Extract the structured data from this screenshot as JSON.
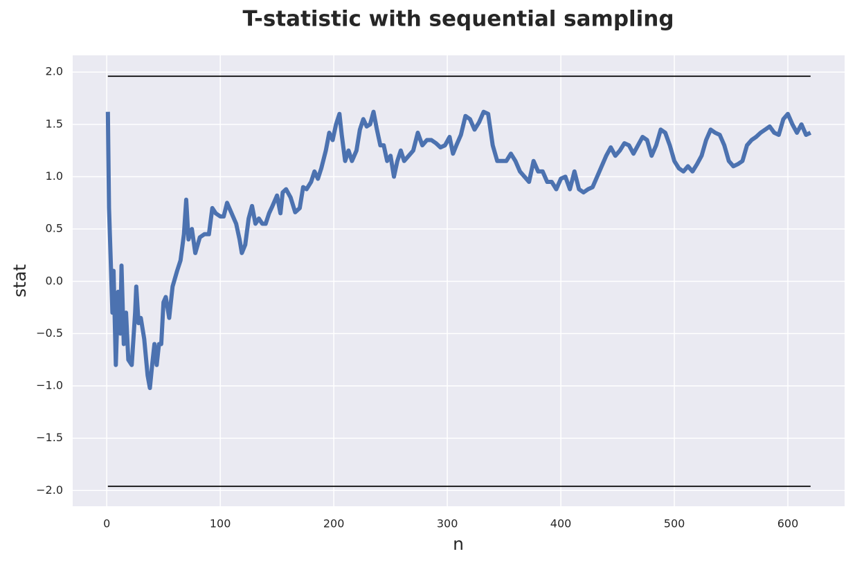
{
  "chart_data": {
    "type": "line",
    "title": "T-statistic with sequential sampling",
    "xlabel": "n",
    "ylabel": "stat",
    "color": "#4c72b0",
    "x": [
      1,
      2,
      5,
      6,
      8,
      10,
      12,
      13,
      15,
      17,
      19,
      22,
      25,
      26,
      28,
      30,
      33,
      36,
      38,
      40,
      42,
      44,
      46,
      48,
      50,
      52,
      55,
      58,
      62,
      65,
      68,
      70,
      72,
      75,
      78,
      82,
      86,
      90,
      93,
      96,
      100,
      103,
      106,
      110,
      114,
      117,
      119,
      122,
      125,
      128,
      131,
      134,
      137,
      140,
      143,
      146,
      150,
      153,
      155,
      158,
      162,
      166,
      170,
      173,
      176,
      180,
      183,
      186,
      189,
      193,
      196,
      199,
      202,
      205,
      207,
      210,
      213,
      216,
      220,
      223,
      226,
      229,
      232,
      235,
      238,
      241,
      244,
      247,
      250,
      253,
      256,
      259,
      262,
      266,
      270,
      274,
      278,
      282,
      286,
      290,
      294,
      298,
      302,
      305,
      308,
      312,
      316,
      320,
      324,
      328,
      332,
      336,
      340,
      344,
      348,
      352,
      356,
      360,
      364,
      368,
      372,
      376,
      380,
      384,
      388,
      392,
      396,
      400,
      404,
      408,
      412,
      416,
      420,
      424,
      428,
      432,
      436,
      440,
      444,
      448,
      452,
      456,
      460,
      464,
      468,
      472,
      476,
      480,
      484,
      488,
      492,
      496,
      500,
      504,
      508,
      512,
      516,
      520,
      524,
      528,
      532,
      536,
      540,
      544,
      548,
      552,
      556,
      560,
      564,
      568,
      572,
      576,
      580,
      584,
      588,
      592,
      596,
      600,
      604,
      608,
      612,
      616,
      620
    ],
    "values": [
      1.62,
      0.7,
      -0.3,
      0.1,
      -0.8,
      -0.1,
      -0.5,
      0.15,
      -0.6,
      -0.3,
      -0.75,
      -0.8,
      -0.3,
      -0.05,
      -0.4,
      -0.35,
      -0.55,
      -0.9,
      -1.02,
      -0.8,
      -0.6,
      -0.8,
      -0.6,
      -0.6,
      -0.2,
      -0.15,
      -0.35,
      -0.05,
      0.1,
      0.2,
      0.45,
      0.78,
      0.4,
      0.5,
      0.27,
      0.42,
      0.45,
      0.45,
      0.7,
      0.65,
      0.62,
      0.62,
      0.75,
      0.65,
      0.55,
      0.4,
      0.27,
      0.35,
      0.6,
      0.72,
      0.55,
      0.6,
      0.55,
      0.55,
      0.65,
      0.72,
      0.82,
      0.65,
      0.85,
      0.88,
      0.8,
      0.66,
      0.7,
      0.9,
      0.88,
      0.95,
      1.05,
      0.98,
      1.08,
      1.25,
      1.42,
      1.35,
      1.5,
      1.6,
      1.4,
      1.15,
      1.25,
      1.15,
      1.25,
      1.45,
      1.55,
      1.48,
      1.5,
      1.62,
      1.45,
      1.3,
      1.3,
      1.15,
      1.2,
      1.0,
      1.15,
      1.25,
      1.15,
      1.2,
      1.25,
      1.42,
      1.3,
      1.35,
      1.35,
      1.32,
      1.28,
      1.3,
      1.38,
      1.22,
      1.3,
      1.4,
      1.58,
      1.55,
      1.45,
      1.52,
      1.62,
      1.6,
      1.3,
      1.15,
      1.15,
      1.15,
      1.22,
      1.15,
      1.05,
      1.0,
      0.95,
      1.15,
      1.05,
      1.05,
      0.95,
      0.95,
      0.88,
      0.98,
      1.0,
      0.88,
      1.05,
      0.88,
      0.85,
      0.88,
      0.9,
      1.0,
      1.1,
      1.2,
      1.28,
      1.2,
      1.25,
      1.32,
      1.3,
      1.22,
      1.3,
      1.38,
      1.35,
      1.2,
      1.3,
      1.45,
      1.42,
      1.3,
      1.15,
      1.08,
      1.05,
      1.1,
      1.05,
      1.12,
      1.2,
      1.35,
      1.45,
      1.42,
      1.4,
      1.3,
      1.15,
      1.1,
      1.12,
      1.15,
      1.3,
      1.35,
      1.38,
      1.42,
      1.45,
      1.48,
      1.42,
      1.4,
      1.55,
      1.6,
      1.5,
      1.42,
      1.5,
      1.4,
      1.42
    ],
    "reference_lines": [
      {
        "y": 1.96,
        "x": [
          1,
          620
        ],
        "color": "#000000"
      },
      {
        "y": -1.96,
        "x": [
          1,
          620
        ],
        "color": "#000000"
      }
    ],
    "xlim": [
      -30,
      650
    ],
    "ylim": [
      -2.15,
      2.16
    ],
    "xticks": [
      0,
      100,
      200,
      300,
      400,
      500,
      600
    ],
    "yticks": [
      {
        "value": -2,
        "label": "−2.0"
      },
      {
        "value": -1.5,
        "label": "−1.5"
      },
      {
        "value": -1,
        "label": "−1.0"
      },
      {
        "value": -0.5,
        "label": "−0.5"
      },
      {
        "value": 0,
        "label": "0.0"
      },
      0.5,
      {
        "value": 1,
        "label": "1.0"
      },
      1.5,
      {
        "value": 2,
        "label": "2.0"
      }
    ],
    "grid": true
  }
}
